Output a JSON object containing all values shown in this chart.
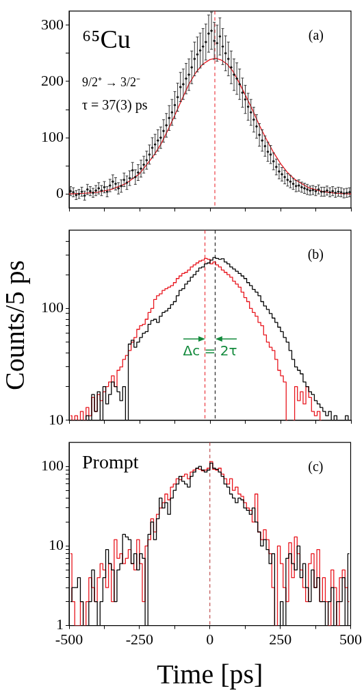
{
  "chart_data": [
    {
      "type": "scatter",
      "annotations": [
        "⁶⁵Cu",
        "9/2⁺ → 3/2⁻",
        "τ = 37(3) ps",
        "(a)"
      ],
      "xlim": [
        -500,
        500
      ],
      "xticks": [
        -500,
        {
          "value": -375,
          "label": null
        },
        -250,
        {
          "value": -125,
          "label": null
        },
        0,
        {
          "value": 125,
          "label": null
        },
        250,
        {
          "value": 375,
          "label": null
        },
        500
      ],
      "ylim": [
        -25,
        325
      ],
      "yticks": [
        0,
        {
          "value": 50,
          "label": null
        },
        100,
        {
          "value": 150,
          "label": null
        },
        200,
        {
          "value": 250,
          "label": null
        },
        300
      ],
      "tick_labels": "y",
      "ref_lines": [
        {
          "axis": "x",
          "value": 17,
          "color": "#e8141c",
          "line_style": "dashed"
        }
      ],
      "series": [
        {
          "color": "#000000",
          "marker": "circle",
          "x": [
            -495,
            -485,
            -475,
            -465,
            -455,
            -445,
            -435,
            -425,
            -415,
            -405,
            -395,
            -385,
            -375,
            -365,
            -355,
            -345,
            -335,
            -325,
            -315,
            -305,
            -295,
            -285,
            -275,
            -265,
            -255,
            -245,
            -235,
            -225,
            -215,
            -205,
            -195,
            -185,
            -175,
            -165,
            -155,
            -145,
            -135,
            -125,
            -115,
            -105,
            -95,
            -85,
            -75,
            -65,
            -55,
            -45,
            -35,
            -25,
            -15,
            -5,
            5,
            15,
            25,
            35,
            45,
            55,
            65,
            75,
            85,
            95,
            105,
            115,
            125,
            135,
            145,
            155,
            165,
            175,
            185,
            195,
            205,
            215,
            225,
            235,
            245,
            255,
            265,
            275,
            285,
            295,
            305,
            315,
            325,
            335,
            345,
            355,
            365,
            375,
            385,
            395,
            405,
            415,
            425,
            435,
            445,
            455,
            465,
            475,
            485,
            495
          ],
          "values": [
            5,
            3,
            -2,
            0,
            4,
            -3,
            8,
            5,
            2,
            6,
            10,
            6,
            12,
            4,
            15,
            22,
            18,
            10,
            14,
            25,
            20,
            28,
            42,
            30,
            38,
            45,
            52,
            60,
            70,
            82,
            88,
            95,
            100,
            112,
            122,
            135,
            145,
            158,
            172,
            190,
            195,
            205,
            212,
            225,
            240,
            248,
            255,
            262,
            270,
            285,
            290,
            272,
            268,
            280,
            262,
            250,
            240,
            225,
            212,
            205,
            195,
            180,
            168,
            155,
            145,
            132,
            120,
            105,
            95,
            85,
            75,
            70,
            58,
            48,
            40,
            35,
            30,
            25,
            22,
            18,
            14,
            15,
            12,
            10,
            8,
            6,
            7,
            5,
            8,
            4,
            4,
            6,
            3,
            5,
            2,
            4,
            3,
            1,
            2,
            3
          ],
          "errors": [
            8,
            8,
            8,
            8,
            8,
            8,
            9,
            8,
            8,
            9,
            10,
            9,
            10,
            9,
            11,
            12,
            11,
            10,
            11,
            12,
            12,
            13,
            14,
            13,
            14,
            15,
            15,
            16,
            17,
            18,
            18,
            19,
            19,
            20,
            21,
            22,
            23,
            24,
            25,
            26,
            27,
            27,
            28,
            29,
            30,
            31,
            31,
            32,
            32,
            33,
            33,
            33,
            32,
            33,
            32,
            31,
            30,
            29,
            28,
            28,
            27,
            26,
            25,
            24,
            23,
            22,
            21,
            20,
            19,
            18,
            17,
            16,
            15,
            14,
            13,
            12,
            12,
            11,
            11,
            10,
            10,
            10,
            9,
            9,
            9,
            8,
            8,
            8,
            8,
            8,
            8,
            8,
            8,
            8,
            8,
            8,
            8,
            8,
            8,
            8
          ]
        },
        {
          "type": "line",
          "color": "#e8141c",
          "marker": "none",
          "x": [
            -500,
            -450,
            -400,
            -350,
            -300,
            -250,
            -200,
            -175,
            -150,
            -125,
            -100,
            -75,
            -50,
            -25,
            0,
            20,
            40,
            60,
            80,
            100,
            125,
            150,
            175,
            200,
            225,
            250,
            275,
            300,
            350,
            400,
            450,
            500
          ],
          "values": [
            0,
            1,
            3,
            8,
            18,
            36,
            68,
            88,
            113,
            140,
            168,
            195,
            216,
            231,
            239,
            241,
            238,
            231,
            219,
            201,
            176,
            150,
            122,
            97,
            74,
            54,
            38,
            26,
            11,
            4,
            1,
            0
          ]
        }
      ]
    },
    {
      "type": "step",
      "ylabel": "Counts/5 ps",
      "log": true,
      "annotations": [
        "Δc = 2τ",
        "(b)"
      ],
      "xlim": [
        -500,
        500
      ],
      "xticks": [
        -500,
        {
          "value": -375,
          "label": null
        },
        -250,
        {
          "value": -125,
          "label": null
        },
        0,
        {
          "value": 125,
          "label": null
        },
        250,
        {
          "value": 375,
          "label": null
        },
        500
      ],
      "ylim": [
        10,
        500
      ],
      "yticks": [
        10,
        {
          "value": 20,
          "label": null
        },
        {
          "value": 30,
          "label": null
        },
        {
          "value": 40,
          "label": null
        },
        {
          "value": 50,
          "label": null
        },
        {
          "value": 60,
          "label": null
        },
        {
          "value": 70,
          "label": null
        },
        {
          "value": 80,
          "label": null
        },
        {
          "value": 90,
          "label": null
        },
        100,
        {
          "value": 200,
          "label": null
        },
        {
          "value": 300,
          "label": null
        },
        {
          "value": 400,
          "label": null
        }
      ],
      "tick_labels": "y",
      "ref_lines": [
        {
          "axis": "x",
          "value": -18,
          "color": "#e8141c",
          "line_style": "dashed"
        },
        {
          "axis": "x",
          "value": 18,
          "color": "#000000",
          "line_style": "dashed"
        }
      ],
      "x": [
        -495,
        -485,
        -475,
        -465,
        -455,
        -445,
        -435,
        -425,
        -415,
        -405,
        -395,
        -385,
        -375,
        -365,
        -355,
        -345,
        -335,
        -325,
        -315,
        -305,
        -295,
        -285,
        -275,
        -265,
        -255,
        -245,
        -235,
        -225,
        -215,
        -205,
        -195,
        -185,
        -175,
        -165,
        -155,
        -145,
        -135,
        -125,
        -115,
        -105,
        -95,
        -85,
        -75,
        -65,
        -55,
        -45,
        -35,
        -25,
        -15,
        -5,
        5,
        15,
        25,
        35,
        45,
        55,
        65,
        75,
        85,
        95,
        105,
        115,
        125,
        135,
        145,
        155,
        165,
        175,
        185,
        195,
        205,
        215,
        225,
        235,
        245,
        255,
        265,
        275,
        285,
        295,
        305,
        315,
        325,
        335,
        345,
        355,
        365,
        375,
        385,
        395,
        405,
        415,
        425,
        435,
        445,
        455,
        465,
        475,
        485,
        495
      ],
      "series": [
        {
          "color": "#000000",
          "values": [
            10,
            10,
            10,
            10,
            10,
            10,
            11,
            10,
            17,
            12,
            18,
            10,
            20,
            14,
            17,
            22,
            20,
            18,
            15,
            20,
            10,
            48,
            52,
            45,
            50,
            55,
            60,
            62,
            72,
            78,
            80,
            75,
            85,
            92,
            95,
            100,
            108,
            115,
            130,
            145,
            150,
            165,
            175,
            190,
            200,
            215,
            230,
            235,
            250,
            255,
            270,
            285,
            280,
            275,
            278,
            260,
            250,
            235,
            225,
            215,
            205,
            195,
            185,
            170,
            160,
            148,
            140,
            130,
            115,
            105,
            98,
            90,
            82,
            75,
            68,
            62,
            55,
            50,
            42,
            35,
            30,
            28,
            26,
            22,
            20,
            18,
            17,
            15,
            14,
            13,
            12,
            11,
            12,
            10,
            11,
            10,
            10,
            10,
            11,
            10
          ]
        },
        {
          "color": "#e8141c",
          "values": [
            11,
            10,
            11,
            10,
            12,
            10,
            13,
            11,
            16,
            12,
            17,
            15,
            18,
            20,
            22,
            25,
            20,
            28,
            30,
            35,
            38,
            42,
            50,
            55,
            65,
            70,
            72,
            80,
            92,
            100,
            120,
            130,
            135,
            145,
            150,
            155,
            160,
            170,
            185,
            195,
            205,
            210,
            220,
            235,
            245,
            255,
            265,
            270,
            280,
            275,
            250,
            260,
            245,
            235,
            220,
            210,
            200,
            190,
            175,
            165,
            155,
            140,
            125,
            115,
            100,
            92,
            85,
            75,
            70,
            58,
            50,
            45,
            42,
            35,
            28,
            25,
            22,
            10,
            null,
            10,
            20,
            15,
            18,
            14,
            20,
            16,
            12,
            11,
            12,
            10,
            null,
            null,
            null,
            null,
            null,
            null,
            null,
            null,
            null,
            null
          ]
        }
      ]
    },
    {
      "type": "step",
      "xlabel": "Time [ps]",
      "log": true,
      "annotations": [
        "Prompt",
        "(c)"
      ],
      "xlim": [
        -500,
        500
      ],
      "xticks": [
        -500,
        {
          "value": -375,
          "label": null
        },
        -250,
        {
          "value": -125,
          "label": null
        },
        0,
        {
          "value": 125,
          "label": null
        },
        250,
        {
          "value": 375,
          "label": null
        },
        500
      ],
      "ylim": [
        1,
        200
      ],
      "yticks": [
        1,
        {
          "value": 2,
          "label": null
        },
        {
          "value": 3,
          "label": null
        },
        {
          "value": 4,
          "label": null
        },
        {
          "value": 5,
          "label": null
        },
        {
          "value": 6,
          "label": null
        },
        {
          "value": 7,
          "label": null
        },
        {
          "value": 8,
          "label": null
        },
        {
          "value": 9,
          "label": null
        },
        10,
        {
          "value": 20,
          "label": null
        },
        {
          "value": 30,
          "label": null
        },
        {
          "value": 40,
          "label": null
        },
        {
          "value": 50,
          "label": null
        },
        {
          "value": 60,
          "label": null
        },
        {
          "value": 70,
          "label": null
        },
        {
          "value": 80,
          "label": null
        },
        {
          "value": 90,
          "label": null
        },
        100
      ],
      "ref_lines": [
        {
          "axis": "x",
          "value": 0,
          "color": "#b02a2a",
          "line_style": "dashed"
        }
      ],
      "x": [
        -495,
        -485,
        -475,
        -465,
        -455,
        -445,
        -435,
        -425,
        -415,
        -405,
        -395,
        -385,
        -375,
        -365,
        -355,
        -345,
        -335,
        -325,
        -315,
        -305,
        -295,
        -285,
        -275,
        -265,
        -255,
        -245,
        -235,
        -225,
        -215,
        -205,
        -195,
        -185,
        -175,
        -165,
        -155,
        -145,
        -135,
        -125,
        -115,
        -105,
        -95,
        -85,
        -75,
        -65,
        -55,
        -45,
        -35,
        -25,
        -15,
        -5,
        5,
        15,
        25,
        35,
        45,
        55,
        65,
        75,
        85,
        95,
        105,
        115,
        125,
        135,
        145,
        155,
        165,
        175,
        185,
        195,
        205,
        215,
        225,
        235,
        245,
        255,
        265,
        275,
        285,
        295,
        305,
        315,
        325,
        335,
        345,
        355,
        365,
        375,
        385,
        395,
        405,
        415,
        425,
        435,
        445,
        455,
        465,
        475,
        485,
        495
      ],
      "series": [
        {
          "color": "#000000",
          "values": [
            2,
            3,
            3,
            4,
            2,
            1,
            1,
            2,
            5,
            2,
            1,
            2,
            4,
            9,
            6,
            5,
            2,
            5,
            6,
            14,
            13,
            12,
            6,
            8,
            5,
            8,
            7,
            1,
            14,
            20,
            12,
            22,
            40,
            30,
            35,
            25,
            40,
            50,
            60,
            75,
            65,
            60,
            55,
            75,
            85,
            95,
            100,
            90,
            85,
            90,
            110,
            95,
            92,
            85,
            75,
            60,
            55,
            45,
            40,
            35,
            40,
            38,
            30,
            28,
            25,
            30,
            20,
            15,
            10,
            12,
            9,
            6,
            8,
            1,
            1,
            2,
            1,
            7,
            8,
            6,
            5,
            10,
            4,
            6,
            3,
            2,
            5,
            3,
            4,
            2,
            2,
            1,
            2,
            3,
            1,
            2,
            2,
            4,
            1,
            8
          ]
        },
        {
          "color": "#e8141c",
          "values": [
            8,
            2,
            1,
            1,
            2,
            1,
            2,
            4,
            3,
            2,
            4,
            6,
            5,
            3,
            6,
            2,
            12,
            7,
            8,
            6,
            7,
            9,
            6,
            5,
            12,
            6,
            2,
            10,
            12,
            22,
            15,
            25,
            30,
            35,
            45,
            38,
            55,
            60,
            70,
            68,
            75,
            80,
            70,
            85,
            90,
            95,
            92,
            88,
            90,
            95,
            115,
            92,
            90,
            95,
            80,
            70,
            60,
            70,
            50,
            55,
            45,
            42,
            35,
            30,
            28,
            20,
            45,
            15,
            12,
            16,
            12,
            8,
            3,
            1,
            10,
            6,
            3,
            2,
            11,
            4,
            13,
            8,
            5,
            3,
            2,
            6,
            8,
            3,
            9,
            2,
            4,
            2,
            1,
            5,
            3,
            1,
            4,
            5,
            3,
            2
          ]
        }
      ]
    }
  ]
}
